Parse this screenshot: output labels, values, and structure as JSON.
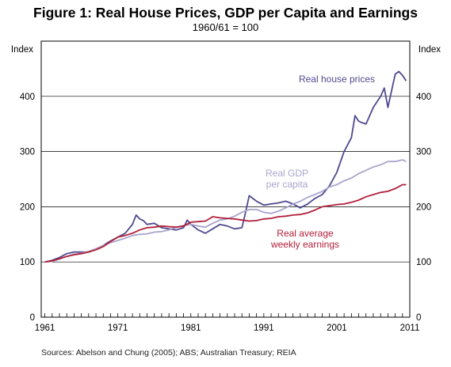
{
  "chart_data": {
    "type": "line",
    "title": "Figure 1: Real House Prices, GDP per Capita and Earnings",
    "subtitle": "1960/61 = 100",
    "ylabel_left": "Index",
    "ylabel_right": "Index",
    "xlim": [
      1960.5,
      2011
    ],
    "ylim": [
      0,
      500
    ],
    "xticks": [
      1961,
      1971,
      1981,
      1991,
      2001,
      2011
    ],
    "yticks": [
      0,
      100,
      200,
      300,
      400
    ],
    "grid": "horizontal",
    "source": "Sources:  Abelson and Chung (2005); ABS; Australian Treasury; REIA",
    "series": [
      {
        "name": "Real house prices",
        "label_lines": [
          "Real house prices"
        ],
        "color": "#4f4a8f",
        "x": [
          1961,
          1962,
          1963,
          1964,
          1965,
          1966,
          1967,
          1968,
          1969,
          1970,
          1971,
          1972,
          1973,
          1973.5,
          1974,
          1974.5,
          1975,
          1976,
          1977,
          1978,
          1979,
          1980,
          1980.5,
          1981,
          1982,
          1983,
          1984,
          1985,
          1986,
          1987,
          1988,
          1988.5,
          1989,
          1990,
          1991,
          1992,
          1993,
          1994,
          1995,
          1996,
          1997,
          1998,
          1999,
          2000,
          2001,
          2002,
          2003,
          2003.5,
          2004,
          2004.5,
          2005,
          2006,
          2007,
          2007.5,
          2008,
          2009,
          2009.5,
          2010,
          2010.5
        ],
        "y": [
          100,
          103,
          108,
          115,
          118,
          118,
          118,
          123,
          130,
          138,
          145,
          152,
          168,
          185,
          178,
          175,
          168,
          170,
          162,
          160,
          158,
          162,
          176,
          168,
          158,
          152,
          160,
          168,
          165,
          160,
          162,
          190,
          220,
          210,
          203,
          205,
          207,
          210,
          205,
          198,
          205,
          215,
          222,
          238,
          262,
          300,
          325,
          365,
          355,
          352,
          350,
          380,
          400,
          415,
          380,
          440,
          445,
          438,
          428
        ]
      },
      {
        "name": "Real GDP per capita",
        "label_lines": [
          "Real GDP",
          "per capita"
        ],
        "color": "#a9a5cc",
        "x": [
          1961,
          1962,
          1963,
          1964,
          1965,
          1966,
          1967,
          1968,
          1969,
          1970,
          1971,
          1972,
          1973,
          1974,
          1975,
          1976,
          1977,
          1978,
          1979,
          1980,
          1981,
          1982,
          1983,
          1984,
          1985,
          1986,
          1987,
          1988,
          1989,
          1990,
          1991,
          1992,
          1993,
          1994,
          1995,
          1996,
          1997,
          1998,
          1999,
          2000,
          2001,
          2002,
          2003,
          2004,
          2005,
          2006,
          2007,
          2008,
          2009,
          2010,
          2010.5
        ],
        "y": [
          100,
          101,
          105,
          110,
          114,
          116,
          119,
          124,
          130,
          135,
          139,
          143,
          148,
          150,
          151,
          154,
          155,
          158,
          163,
          166,
          168,
          165,
          163,
          170,
          176,
          178,
          183,
          190,
          195,
          195,
          190,
          188,
          192,
          198,
          205,
          210,
          217,
          222,
          228,
          236,
          240,
          247,
          252,
          260,
          266,
          272,
          276,
          282,
          282,
          285,
          282
        ]
      },
      {
        "name": "Real average weekly earnings",
        "label_lines": [
          "Real average",
          "weekly earnings"
        ],
        "color": "#b2203a",
        "x": [
          1961,
          1962,
          1963,
          1964,
          1965,
          1966,
          1967,
          1968,
          1969,
          1970,
          1971,
          1972,
          1973,
          1974,
          1975,
          1976,
          1977,
          1978,
          1979,
          1980,
          1981,
          1982,
          1983,
          1984,
          1985,
          1986,
          1987,
          1988,
          1989,
          1990,
          1991,
          1992,
          1993,
          1994,
          1995,
          1996,
          1997,
          1998,
          1999,
          2000,
          2001,
          2002,
          2003,
          2004,
          2005,
          2006,
          2007,
          2008,
          2009,
          2010,
          2010.5
        ],
        "y": [
          100,
          102,
          106,
          110,
          113,
          115,
          118,
          122,
          128,
          137,
          145,
          148,
          152,
          158,
          162,
          163,
          165,
          164,
          163,
          165,
          172,
          173,
          174,
          182,
          180,
          179,
          178,
          176,
          174,
          175,
          178,
          179,
          182,
          183,
          185,
          186,
          189,
          194,
          200,
          202,
          204,
          205,
          208,
          212,
          218,
          222,
          226,
          228,
          233,
          240,
          240
        ]
      }
    ]
  }
}
